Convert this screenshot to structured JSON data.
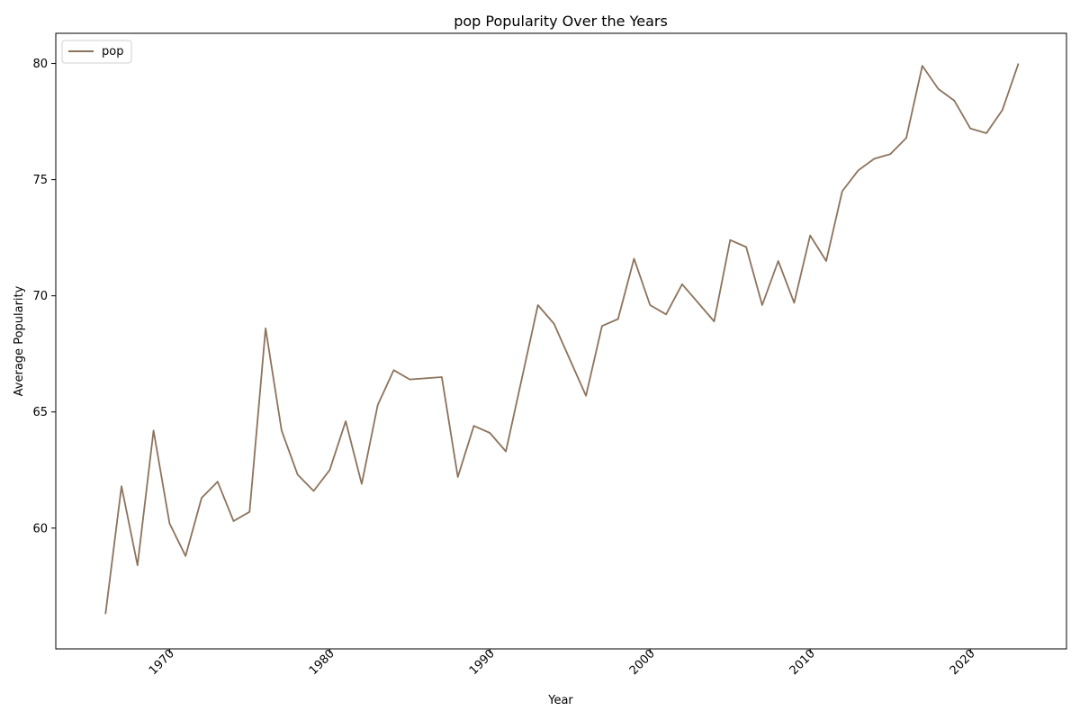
{
  "chart_data": {
    "type": "line",
    "title": "pop Popularity Over the Years",
    "xlabel": "Year",
    "ylabel": "Average Popularity",
    "xlim": [
      1962.9,
      2026.0
    ],
    "ylim": [
      54.8,
      81.3
    ],
    "x_ticks": [
      1970,
      1980,
      1990,
      2000,
      2010,
      2020
    ],
    "y_ticks": [
      60,
      65,
      70,
      75,
      80
    ],
    "grid": false,
    "legend": "top-left",
    "series": [
      {
        "name": "pop",
        "color": "#8c735c",
        "x": [
          1966,
          1967,
          1968,
          1969,
          1970,
          1971,
          1972,
          1973,
          1974,
          1975,
          1976,
          1977,
          1978,
          1979,
          1980,
          1981,
          1982,
          1983,
          1984,
          1985,
          1987,
          1988,
          1989,
          1990,
          1991,
          1993,
          1994,
          1996,
          1997,
          1998,
          1999,
          2000,
          2001,
          2002,
          2004,
          2005,
          2006,
          2007,
          2008,
          2009,
          2010,
          2011,
          2012,
          2013,
          2014,
          2015,
          2016,
          2017,
          2018,
          2019,
          2020,
          2021,
          2022,
          2023
        ],
        "values": [
          56.3,
          61.8,
          58.4,
          64.2,
          60.2,
          58.8,
          61.3,
          62.0,
          60.3,
          60.7,
          68.6,
          64.2,
          62.3,
          61.6,
          62.5,
          64.6,
          61.9,
          65.3,
          66.8,
          66.4,
          66.5,
          62.2,
          64.4,
          64.1,
          63.3,
          69.6,
          68.8,
          65.7,
          68.7,
          69.0,
          71.6,
          69.6,
          69.2,
          70.5,
          68.9,
          72.4,
          72.1,
          69.6,
          71.5,
          69.7,
          72.6,
          71.5,
          74.5,
          75.4,
          75.9,
          76.1,
          76.8,
          79.9,
          78.9,
          78.4,
          77.2,
          77.0,
          78.0,
          80.0
        ]
      }
    ]
  }
}
